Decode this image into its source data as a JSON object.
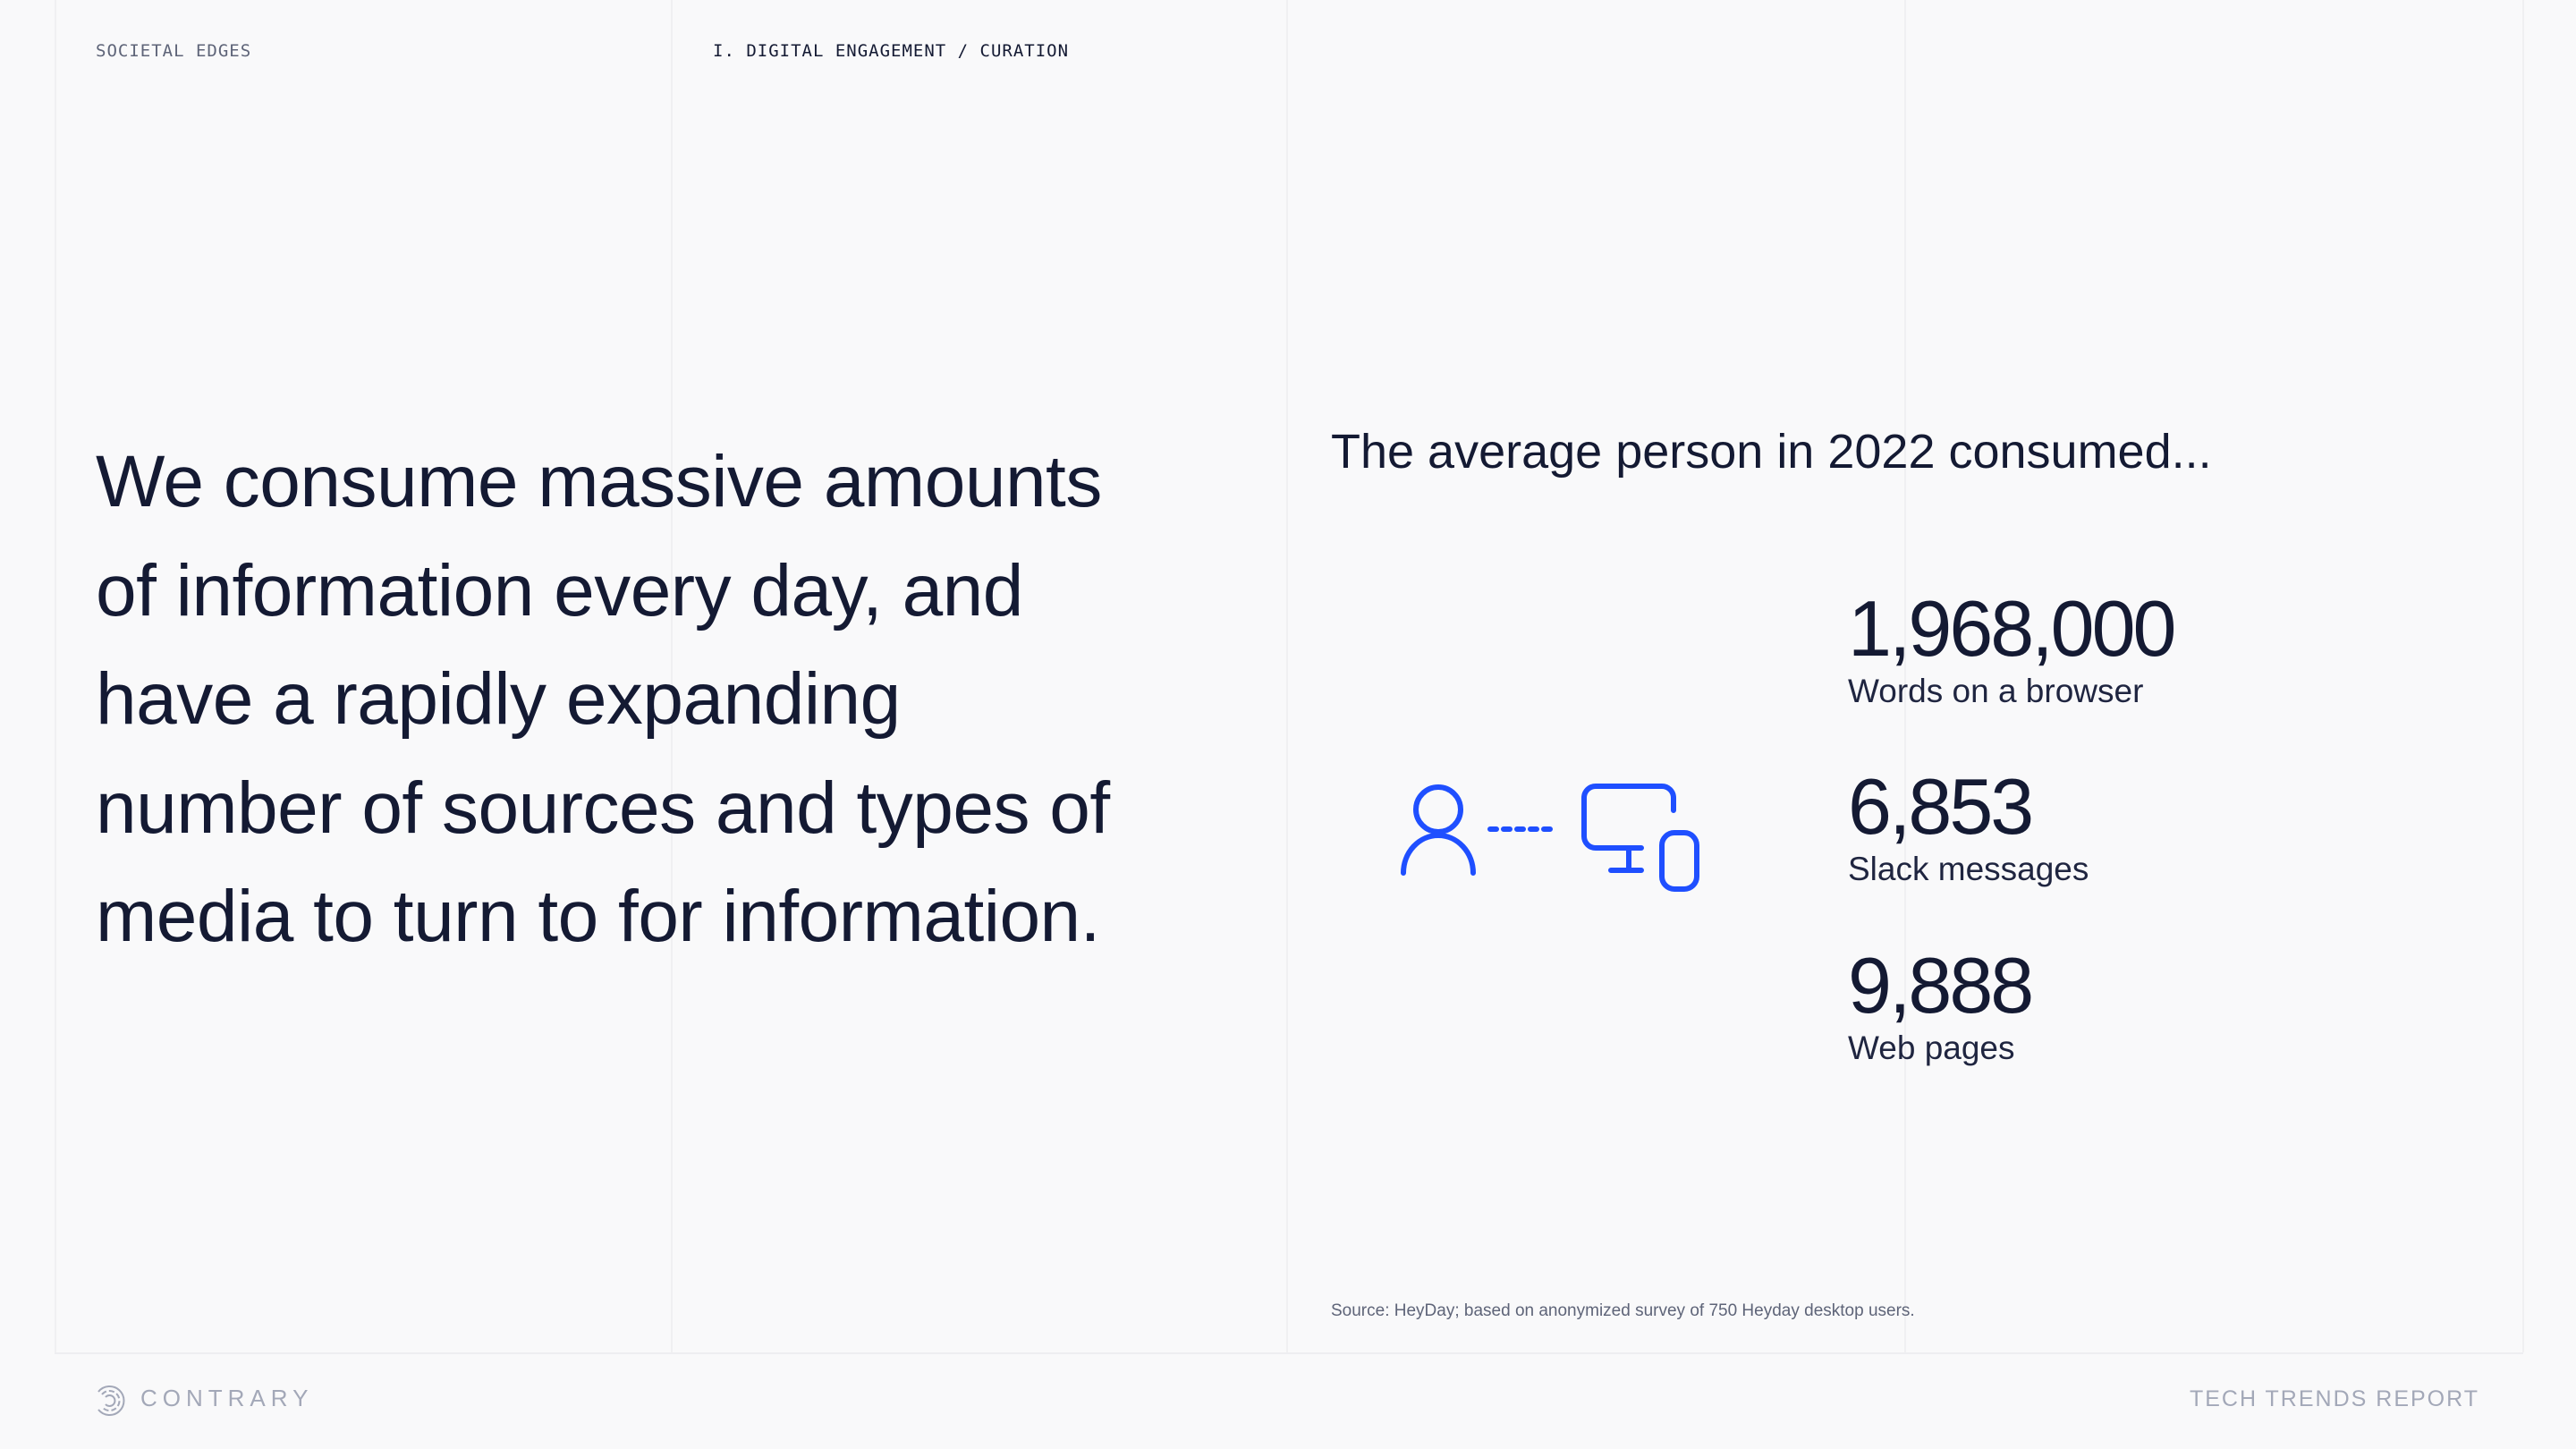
{
  "header": {
    "section": "SOCIETAL EDGES",
    "breadcrumb": "I. DIGITAL ENGAGEMENT / CURATION"
  },
  "headline": "We consume massive amounts of information every day, and have a rapidly expanding number of sources and types of media to turn to for information.",
  "stats": {
    "title": "The average person in 2022 consumed...",
    "items": [
      {
        "value": "1,968,000",
        "label": "Words on a browser"
      },
      {
        "value": "6,853",
        "label": "Slack messages"
      },
      {
        "value": "9,888",
        "label": "Web pages"
      }
    ],
    "icon": "person-to-devices-icon",
    "accent_color": "#1f4fff"
  },
  "source": "Source: HeyDay; based on anonymized survey of 750 Heyday desktop users.",
  "footer": {
    "brand": "CONTRARY",
    "report": "TECH TRENDS REPORT"
  }
}
